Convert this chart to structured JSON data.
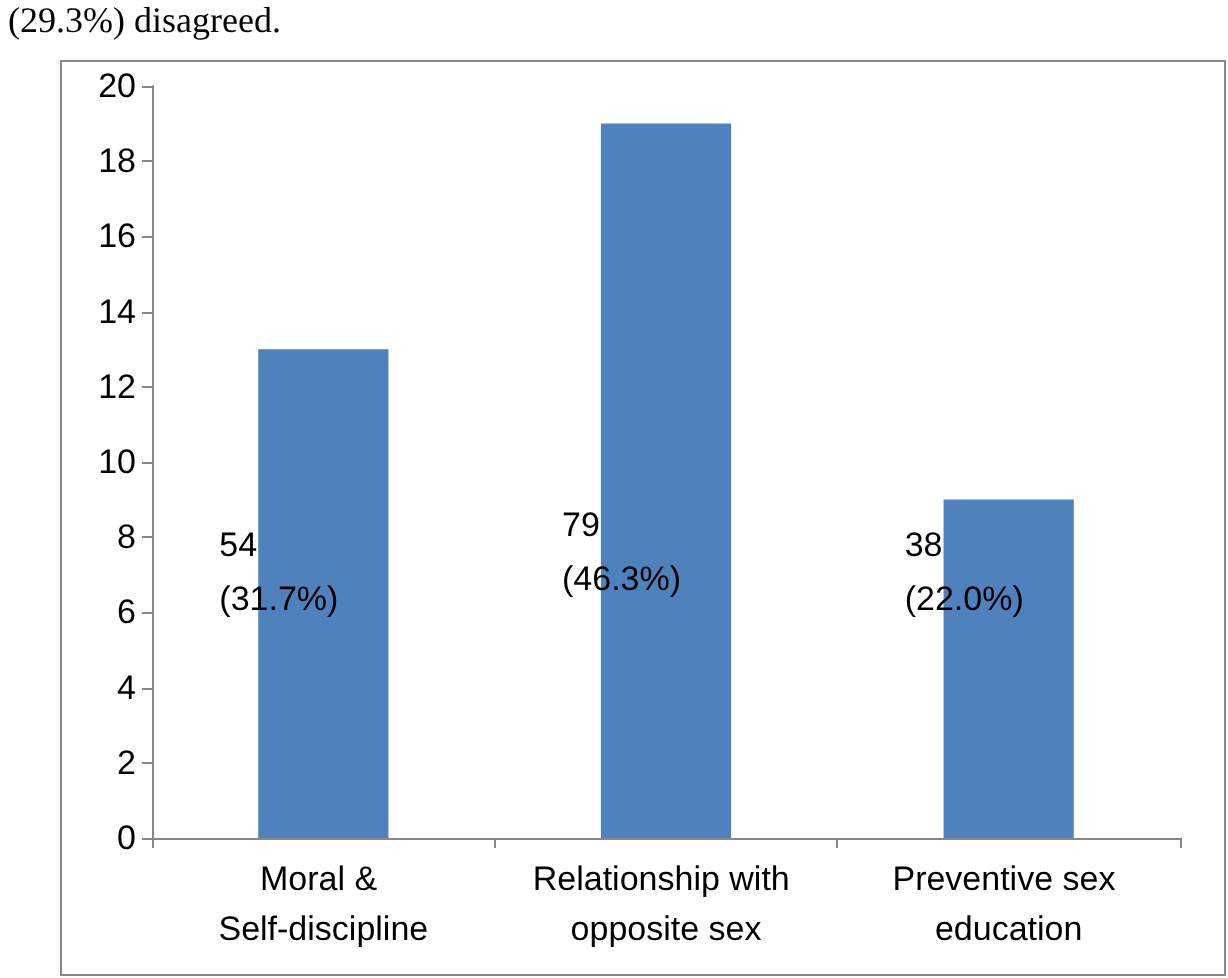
{
  "chart_data": {
    "type": "bar",
    "categories": [
      "Moral & Self-discipline",
      "Relationship with opposite sex",
      "Preventive sex education"
    ],
    "values": [
      13,
      19,
      9
    ],
    "color": "#4f81bd",
    "ylim": [
      0,
      20
    ],
    "yticks": [
      0,
      2,
      4,
      6,
      8,
      10,
      12,
      14,
      16,
      18,
      20
    ],
    "grid": false,
    "annotations": [
      "(29.3%) disagreed.",
      "54\n(31.7%)",
      "79\n(46.3%)",
      "38\n(22.0%)"
    ]
  }
}
